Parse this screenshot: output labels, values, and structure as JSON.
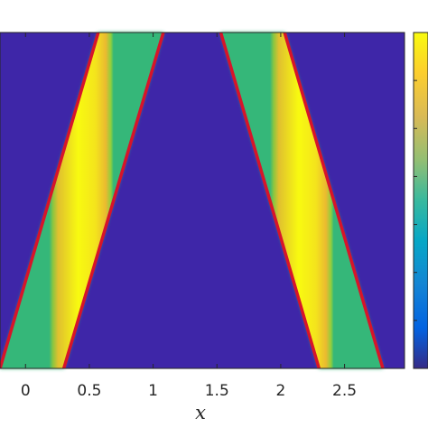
{
  "chart_data": {
    "type": "heatmap",
    "title": "",
    "xlabel": "x",
    "ylabel": "",
    "xlim": [
      -0.2,
      2.97
    ],
    "xticks": [
      {
        "value": 0,
        "label": "0"
      },
      {
        "value": 0.5,
        "label": "0.5"
      },
      {
        "value": 1,
        "label": "1"
      },
      {
        "value": 1.5,
        "label": "1.5"
      },
      {
        "value": 2,
        "label": "2"
      },
      {
        "value": 2.5,
        "label": "2.5"
      }
    ],
    "bands": [
      {
        "x_left_bottom": -0.2,
        "x_right_bottom": 0.3,
        "x_left_top": 0.57,
        "x_right_top": 1.08
      },
      {
        "x_left_bottom": 2.3,
        "x_right_bottom": 2.8,
        "x_left_top": 1.53,
        "x_right_top": 2.03
      }
    ],
    "background_color": "#3e26a8",
    "band_edge_color": "#d7142a",
    "colormap": "parula",
    "colorbar": true
  }
}
